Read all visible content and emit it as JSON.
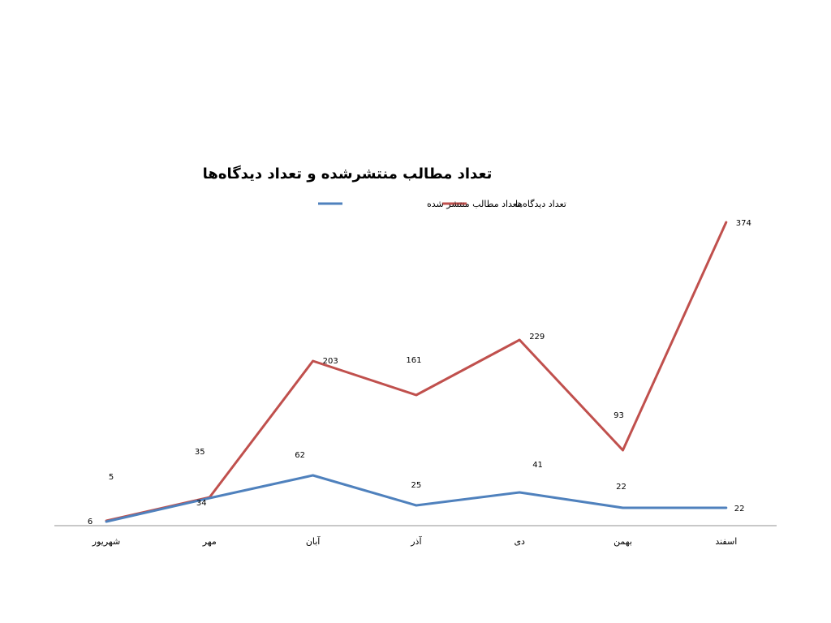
{
  "chart_data": {
    "type": "line",
    "title": "تعداد مطالب منتشرشده و تعداد دیدگاه‌ها",
    "categories": [
      "شهریور",
      "مهر",
      "آبان",
      "آذر",
      "دی",
      "بهمن",
      "اسفند"
    ],
    "series": [
      {
        "name": "تعداد مطالب منتشر شده",
        "color": "#4F81BD",
        "values": [
          5,
          34,
          62,
          25,
          41,
          22,
          22
        ]
      },
      {
        "name": "تعداد دیدگاه‌ها",
        "color": "#C0504D",
        "values": [
          6,
          35,
          203,
          161,
          229,
          93,
          374
        ]
      }
    ],
    "ylim": [
      0,
      400
    ],
    "grid": false,
    "legend_position": "top"
  }
}
